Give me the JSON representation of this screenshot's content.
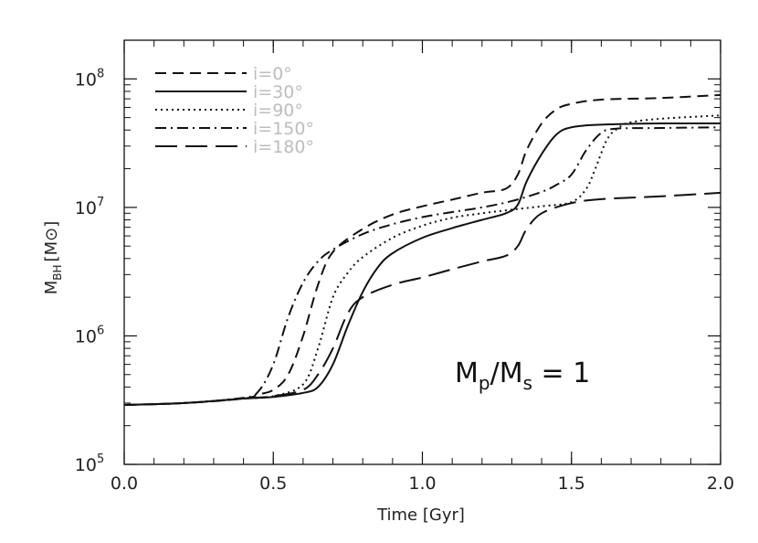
{
  "chart_data": {
    "type": "line",
    "xlabel": "Time [Gyr]",
    "ylabel": "M",
    "ylabel_sub": "BH",
    "ylabel_unit": "[M⊙]",
    "xlim": [
      0.0,
      2.0
    ],
    "ylim": [
      100000,
      200000000
    ],
    "yscale": "log",
    "x_ticks": [
      0.0,
      0.5,
      1.0,
      1.5,
      2.0
    ],
    "x_tick_labels": [
      "0.0",
      "0.5",
      "1.0",
      "1.5",
      "2.0"
    ],
    "y_ticks": [
      {
        "value": 100000,
        "base": "10",
        "exp": "5"
      },
      {
        "value": 1000000,
        "base": "10",
        "exp": "6"
      },
      {
        "value": 10000000,
        "base": "10",
        "exp": "7"
      },
      {
        "value": 100000000,
        "base": "10",
        "exp": "8"
      }
    ],
    "annotation": {
      "prefix": "M",
      "sub1": "p",
      "mid": "/M",
      "sub2": "s",
      "suffix": " = 1"
    },
    "series": [
      {
        "name": "i=0°",
        "dash": "12,7",
        "points": [
          [
            0,
            290000.0
          ],
          [
            0.2,
            300000.0
          ],
          [
            0.4,
            325000.0
          ],
          [
            0.45,
            350000.0
          ],
          [
            0.5,
            380000.0
          ],
          [
            0.55,
            500000.0
          ],
          [
            0.6,
            1000000.0
          ],
          [
            0.65,
            2500000.0
          ],
          [
            0.7,
            4500000.0
          ],
          [
            0.8,
            6800000.0
          ],
          [
            0.9,
            8800000.0
          ],
          [
            1.0,
            10200000.0
          ],
          [
            1.1,
            11500000.0
          ],
          [
            1.2,
            13000000.0
          ],
          [
            1.28,
            14000000.0
          ],
          [
            1.32,
            18000000.0
          ],
          [
            1.35,
            28000000.0
          ],
          [
            1.4,
            45000000.0
          ],
          [
            1.45,
            58000000.0
          ],
          [
            1.5,
            64000000.0
          ],
          [
            1.6,
            69000000.0
          ],
          [
            1.8,
            71000000.0
          ],
          [
            2.0,
            75000000.0
          ]
        ]
      },
      {
        "name": "i=30°",
        "dash": "",
        "points": [
          [
            0,
            290000.0
          ],
          [
            0.2,
            300000.0
          ],
          [
            0.4,
            325000.0
          ],
          [
            0.5,
            335000.0
          ],
          [
            0.6,
            360000.0
          ],
          [
            0.65,
            400000.0
          ],
          [
            0.7,
            600000.0
          ],
          [
            0.75,
            1200000.0
          ],
          [
            0.8,
            2200000.0
          ],
          [
            0.85,
            3400000.0
          ],
          [
            0.9,
            4400000.0
          ],
          [
            1.0,
            5800000.0
          ],
          [
            1.1,
            6900000.0
          ],
          [
            1.2,
            8000000.0
          ],
          [
            1.28,
            9000000.0
          ],
          [
            1.32,
            10500000.0
          ],
          [
            1.35,
            16000000.0
          ],
          [
            1.4,
            26000000.0
          ],
          [
            1.45,
            37000000.0
          ],
          [
            1.5,
            42000000.0
          ],
          [
            1.6,
            44000000.0
          ],
          [
            1.8,
            45000000.0
          ],
          [
            2.0,
            45000000.0
          ]
        ]
      },
      {
        "name": "i=90°",
        "dash": "2,4",
        "points": [
          [
            0,
            290000.0
          ],
          [
            0.2,
            300000.0
          ],
          [
            0.4,
            325000.0
          ],
          [
            0.5,
            340000.0
          ],
          [
            0.6,
            420000.0
          ],
          [
            0.65,
            800000.0
          ],
          [
            0.7,
            2000000.0
          ],
          [
            0.75,
            3100000.0
          ],
          [
            0.8,
            4100000.0
          ],
          [
            0.9,
            5800000.0
          ],
          [
            1.0,
            7200000.0
          ],
          [
            1.1,
            8300000.0
          ],
          [
            1.2,
            9000000.0
          ],
          [
            1.3,
            9600000.0
          ],
          [
            1.4,
            10200000.0
          ],
          [
            1.5,
            11000000.0
          ],
          [
            1.55,
            14000000.0
          ],
          [
            1.58,
            20000000.0
          ],
          [
            1.62,
            34000000.0
          ],
          [
            1.66,
            42000000.0
          ],
          [
            1.7,
            46000000.0
          ],
          [
            1.8,
            49000000.0
          ],
          [
            2.0,
            52000000.0
          ]
        ]
      },
      {
        "name": "i=150°",
        "dash": "12,5,2,5",
        "points": [
          [
            0,
            290000.0
          ],
          [
            0.2,
            300000.0
          ],
          [
            0.4,
            330000.0
          ],
          [
            0.45,
            370000.0
          ],
          [
            0.5,
            600000.0
          ],
          [
            0.55,
            1400000.0
          ],
          [
            0.6,
            2600000.0
          ],
          [
            0.65,
            3800000.0
          ],
          [
            0.7,
            4700000.0
          ],
          [
            0.8,
            6200000.0
          ],
          [
            0.9,
            7400000.0
          ],
          [
            1.0,
            8400000.0
          ],
          [
            1.1,
            9200000.0
          ],
          [
            1.2,
            10000000.0
          ],
          [
            1.3,
            11200000.0
          ],
          [
            1.4,
            13200000.0
          ],
          [
            1.45,
            15000000.0
          ],
          [
            1.5,
            18000000.0
          ],
          [
            1.55,
            28000000.0
          ],
          [
            1.6,
            38000000.0
          ],
          [
            1.65,
            41000000.0
          ],
          [
            1.8,
            41500000.0
          ],
          [
            2.0,
            42000000.0
          ]
        ]
      },
      {
        "name": "i=180°",
        "dash": "24,9",
        "points": [
          [
            0,
            290000.0
          ],
          [
            0.2,
            300000.0
          ],
          [
            0.4,
            325000.0
          ],
          [
            0.5,
            340000.0
          ],
          [
            0.6,
            380000.0
          ],
          [
            0.65,
            500000.0
          ],
          [
            0.7,
            800000.0
          ],
          [
            0.75,
            1500000.0
          ],
          [
            0.8,
            2000000.0
          ],
          [
            0.9,
            2500000.0
          ],
          [
            1.0,
            2850000.0
          ],
          [
            1.1,
            3300000.0
          ],
          [
            1.2,
            3800000.0
          ],
          [
            1.28,
            4200000.0
          ],
          [
            1.32,
            5000000.0
          ],
          [
            1.35,
            6800000.0
          ],
          [
            1.4,
            9000000.0
          ],
          [
            1.5,
            10800000.0
          ],
          [
            1.6,
            11600000.0
          ],
          [
            1.8,
            12200000.0
          ],
          [
            2.0,
            13000000.0
          ]
        ]
      }
    ]
  }
}
